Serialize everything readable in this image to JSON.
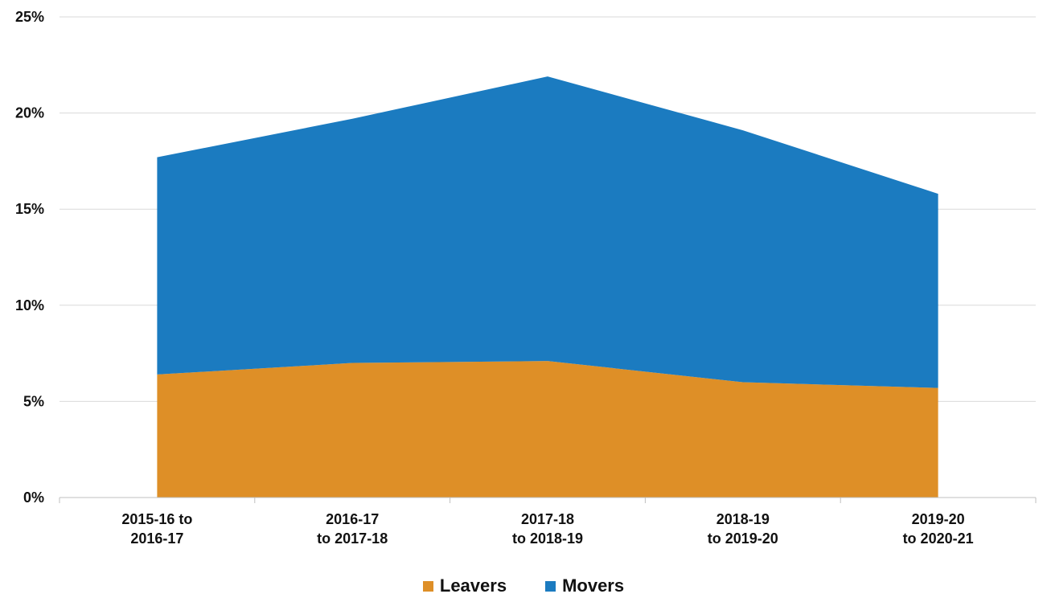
{
  "chart_data": {
    "type": "area",
    "stacked": true,
    "categories": [
      [
        "2015-16 to",
        "2016-17"
      ],
      [
        "2016-17",
        "to 2017-18"
      ],
      [
        "2017-18",
        "to 2018-19"
      ],
      [
        "2018-19",
        "to 2019-20"
      ],
      [
        "2019-20",
        "to 2020-21"
      ]
    ],
    "series": [
      {
        "name": "Leavers",
        "color": "#DE8F27",
        "values": [
          6.4,
          7.0,
          7.1,
          6.0,
          5.7
        ]
      },
      {
        "name": "Movers",
        "color": "#1B7BC0",
        "values": [
          11.3,
          12.7,
          14.8,
          13.1,
          10.1
        ]
      }
    ],
    "yticks": [
      "0%",
      "5%",
      "10%",
      "15%",
      "20%",
      "25%"
    ],
    "ylim": [
      0,
      25
    ],
    "grid": true,
    "legend_position": "bottom"
  },
  "legend": {
    "leavers": "Leavers",
    "movers": "Movers"
  }
}
